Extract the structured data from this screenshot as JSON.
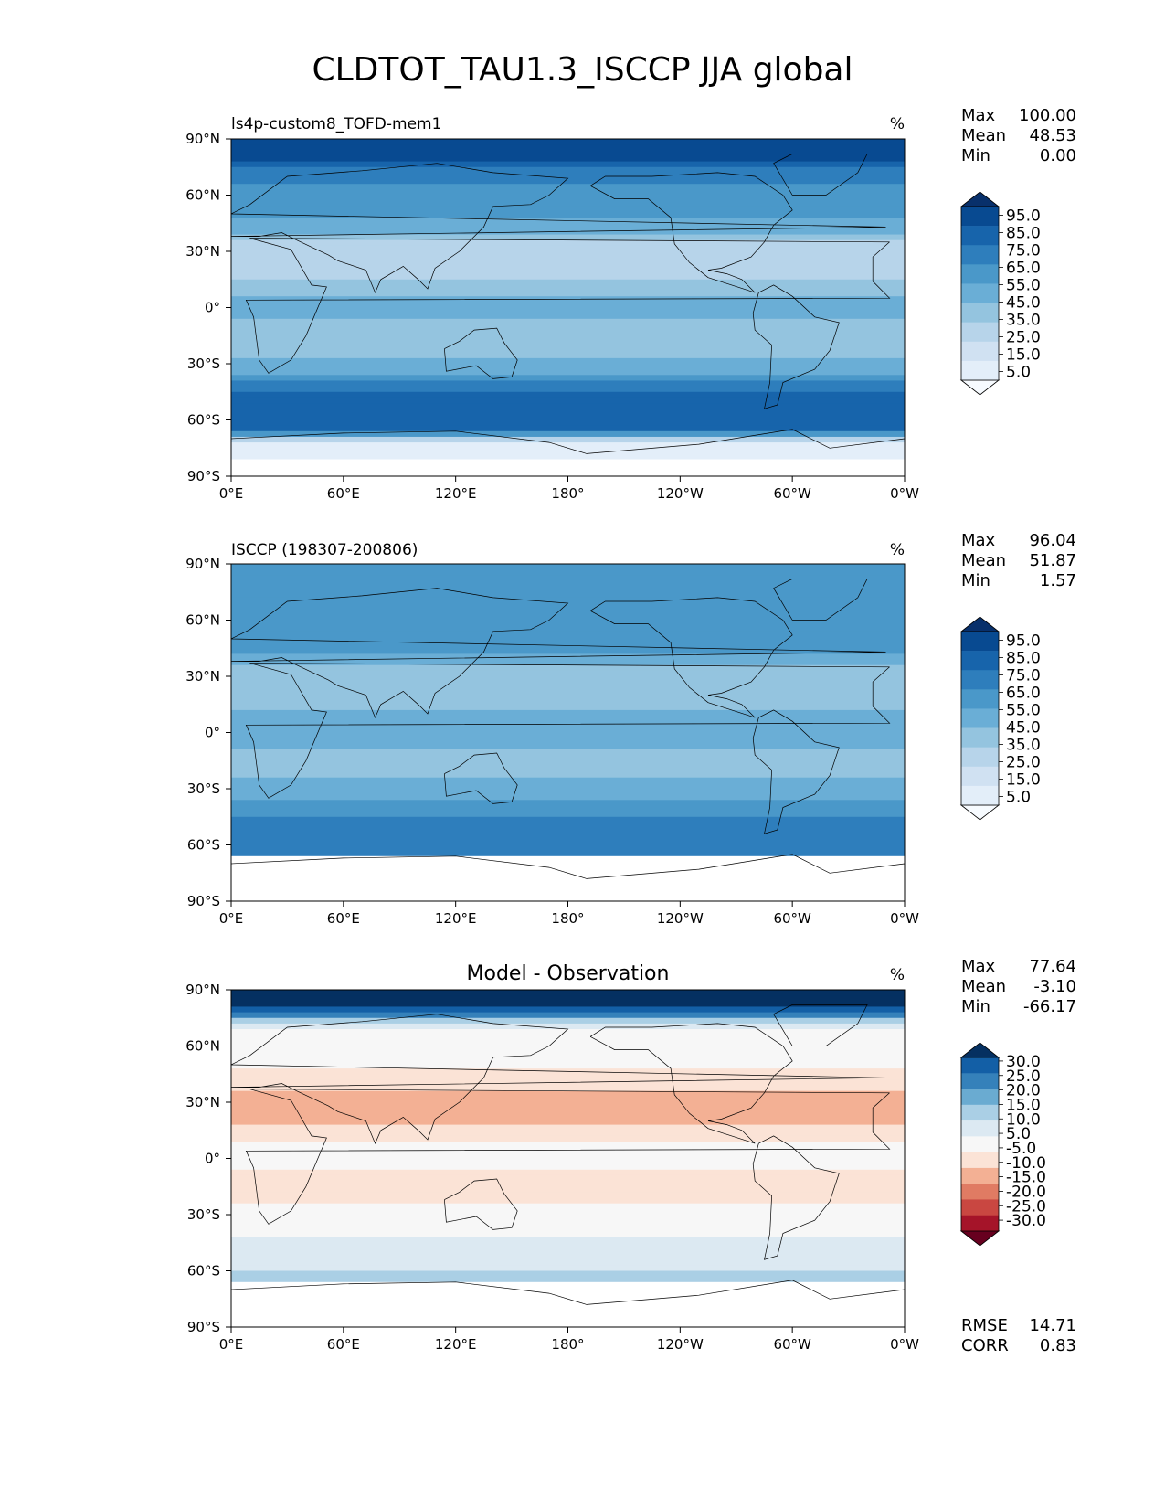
{
  "title": "CLDTOT_TAU1.3_ISCCP JJA global",
  "colors": {
    "blues": [
      "#f7fbff",
      "#e3eef9",
      "#d0e1f2",
      "#b7d4ea",
      "#94c4df",
      "#6aaed6",
      "#4a98c9",
      "#2e7ebc",
      "#1764ab",
      "#084a91",
      "#08306b"
    ],
    "rdbu": [
      "#67001f",
      "#a51429",
      "#c94741",
      "#e07b63",
      "#f3b094",
      "#fbe3d6",
      "#f7f7f7",
      "#dce9f2",
      "#aacfe5",
      "#6aabd1",
      "#3581ba",
      "#135fa6",
      "#053061"
    ]
  },
  "chart_data": [
    {
      "type": "heatmap",
      "title": "ls4p-custom8_TOFD-mem1",
      "units": "%",
      "stats": [
        {
          "label": "Max",
          "value": "100.00"
        },
        {
          "label": "Mean",
          "value": "48.53"
        },
        {
          "label": "Min",
          "value": "0.00"
        }
      ],
      "colorbar": {
        "levels": [
          0,
          10,
          20,
          30,
          40,
          50,
          60,
          70,
          80,
          90,
          100
        ],
        "tick_labels": [
          "95.0",
          "85.0",
          "75.0",
          "65.0",
          "55.0",
          "45.0",
          "35.0",
          "25.0",
          "15.0",
          "5.0"
        ],
        "extend": "both"
      },
      "xticks": [
        "0°E",
        "60°E",
        "120°E",
        "180°",
        "120°W",
        "60°W",
        "0°W"
      ],
      "yticks": [
        "90°N",
        "60°N",
        "30°N",
        "0°",
        "30°S",
        "60°S",
        "90°S"
      ],
      "xlim": [
        0,
        360
      ],
      "ylim": [
        -90,
        90
      ],
      "zonal_mean_profile": [
        [
          -90,
          null
        ],
        [
          -80,
          10
        ],
        [
          -72,
          18
        ],
        [
          -65,
          88
        ],
        [
          -55,
          90
        ],
        [
          -45,
          80
        ],
        [
          -35,
          60
        ],
        [
          -20,
          40
        ],
        [
          -10,
          45
        ],
        [
          0,
          55
        ],
        [
          10,
          48
        ],
        [
          20,
          30
        ],
        [
          30,
          30
        ],
        [
          40,
          50
        ],
        [
          50,
          65
        ],
        [
          60,
          68
        ],
        [
          70,
          72
        ],
        [
          80,
          92
        ],
        [
          90,
          96
        ]
      ]
    },
    {
      "type": "heatmap",
      "title": "ISCCP (198307-200806)",
      "units": "%",
      "stats": [
        {
          "label": "Max",
          "value": "96.04"
        },
        {
          "label": "Mean",
          "value": "51.87"
        },
        {
          "label": "Min",
          "value": "1.57"
        }
      ],
      "colorbar": {
        "levels": [
          0,
          10,
          20,
          30,
          40,
          50,
          60,
          70,
          80,
          90,
          100
        ],
        "tick_labels": [
          "95.0",
          "85.0",
          "75.0",
          "65.0",
          "55.0",
          "45.0",
          "35.0",
          "25.0",
          "15.0",
          "5.0"
        ],
        "extend": "both"
      },
      "xticks": [
        "0°E",
        "60°E",
        "120°E",
        "180°",
        "120°W",
        "60°W",
        "0°W"
      ],
      "yticks": [
        "90°N",
        "60°N",
        "30°N",
        "0°",
        "30°S",
        "60°S",
        "90°S"
      ],
      "xlim": [
        0,
        360
      ],
      "ylim": [
        -90,
        90
      ],
      "zonal_mean_profile": [
        [
          -90,
          null
        ],
        [
          -66,
          null
        ],
        [
          -65,
          78
        ],
        [
          -55,
          80
        ],
        [
          -45,
          72
        ],
        [
          -35,
          58
        ],
        [
          -20,
          48
        ],
        [
          -10,
          50
        ],
        [
          0,
          58
        ],
        [
          10,
          52
        ],
        [
          20,
          42
        ],
        [
          30,
          42
        ],
        [
          40,
          58
        ],
        [
          50,
          68
        ],
        [
          60,
          70
        ],
        [
          70,
          65
        ],
        [
          80,
          62
        ],
        [
          90,
          60
        ]
      ]
    },
    {
      "type": "heatmap",
      "title": "Model - Observation",
      "units": "%",
      "stats": [
        {
          "label": "Max",
          "value": "77.64"
        },
        {
          "label": "Mean",
          "value": "-3.10"
        },
        {
          "label": "Min",
          "value": "-66.17"
        }
      ],
      "colorbar": {
        "levels": [
          -35,
          -30,
          -25,
          -20,
          -15,
          -10,
          -5,
          5,
          10,
          15,
          20,
          25,
          30,
          35
        ],
        "tick_labels": [
          "30.0",
          "25.0",
          "20.0",
          "15.0",
          "10.0",
          "5.0",
          "-5.0",
          "-10.0",
          "-15.0",
          "-20.0",
          "-25.0",
          "-30.0"
        ],
        "extend": "both"
      },
      "xticks": [
        "0°E",
        "60°E",
        "120°E",
        "180°",
        "120°W",
        "60°W",
        "0°W"
      ],
      "yticks": [
        "90°N",
        "60°N",
        "30°N",
        "0°",
        "30°S",
        "60°S",
        "90°S"
      ],
      "xlim": [
        0,
        360
      ],
      "ylim": [
        -90,
        90
      ],
      "zonal_mean_profile": [
        [
          -90,
          null
        ],
        [
          -66,
          null
        ],
        [
          -65,
          12
        ],
        [
          -55,
          8
        ],
        [
          -45,
          6
        ],
        [
          -35,
          2
        ],
        [
          -20,
          -8
        ],
        [
          -10,
          -6
        ],
        [
          0,
          -4
        ],
        [
          10,
          -5
        ],
        [
          20,
          -12
        ],
        [
          30,
          -12
        ],
        [
          40,
          -8
        ],
        [
          50,
          -4
        ],
        [
          60,
          -2
        ],
        [
          70,
          6
        ],
        [
          80,
          30
        ],
        [
          90,
          36
        ]
      ],
      "extra_stats": [
        {
          "label": "RMSE",
          "value": "14.71"
        },
        {
          "label": "CORR",
          "value": "0.83"
        }
      ]
    }
  ]
}
